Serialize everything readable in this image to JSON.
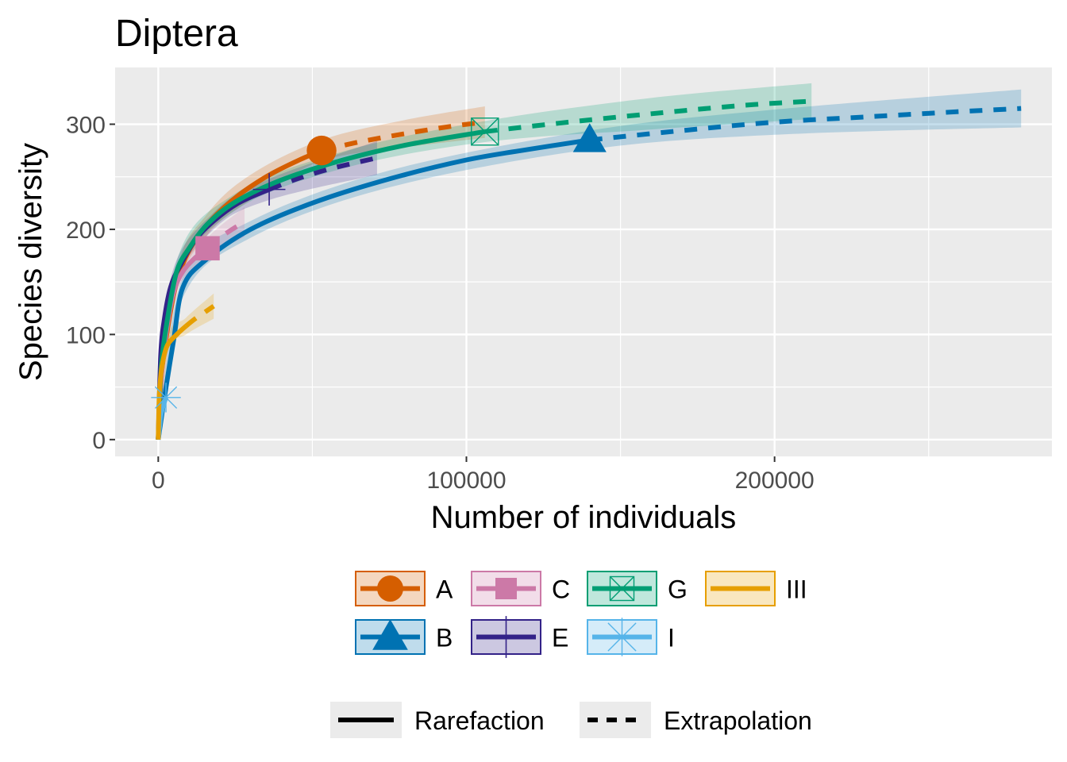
{
  "chart_data": {
    "type": "line",
    "title": "Diptera",
    "xlabel": "Number of individuals",
    "ylabel": "Species diversity",
    "xlim": [
      -14000,
      290000
    ],
    "ylim": [
      -16,
      354
    ],
    "x_ticks": [
      0,
      100000,
      200000
    ],
    "x_tick_labels": [
      "0",
      "100000",
      "200000"
    ],
    "y_ticks": [
      0,
      100,
      200,
      300
    ],
    "y_tick_labels": [
      "0",
      "100",
      "200",
      "300"
    ],
    "grid": true,
    "legend_position": "bottom",
    "linetype_legend": [
      {
        "label": "Rarefaction",
        "dash": "solid"
      },
      {
        "label": "Extrapolation",
        "dash": "dashed"
      }
    ],
    "series": [
      {
        "name": "A",
        "color": "#D55E00",
        "marker": "circle",
        "observed": [
          53000,
          275
        ],
        "rarefaction": [
          [
            0,
            0
          ],
          [
            1000,
            60
          ],
          [
            3000,
            105
          ],
          [
            6000,
            150
          ],
          [
            10000,
            180
          ],
          [
            16000,
            205
          ],
          [
            25000,
            230
          ],
          [
            35000,
            250
          ],
          [
            45000,
            265
          ],
          [
            53000,
            275
          ]
        ],
        "extrapolation": [
          [
            53000,
            275
          ],
          [
            65000,
            283
          ],
          [
            80000,
            291
          ],
          [
            95000,
            298
          ],
          [
            106000,
            302
          ]
        ],
        "band": [
          [
            0,
            0,
            0
          ],
          [
            6000,
            140,
            160
          ],
          [
            16000,
            195,
            215
          ],
          [
            30000,
            228,
            252
          ],
          [
            53000,
            265,
            285
          ],
          [
            80000,
            278,
            304
          ],
          [
            106000,
            287,
            317
          ]
        ]
      },
      {
        "name": "B",
        "color": "#0072B2",
        "marker": "triangle",
        "observed": [
          140000,
          285
        ],
        "rarefaction": [
          [
            0,
            0
          ],
          [
            2000,
            40
          ],
          [
            5000,
            95
          ],
          [
            8000,
            145
          ],
          [
            15000,
            170
          ],
          [
            30000,
            200
          ],
          [
            50000,
            225
          ],
          [
            75000,
            248
          ],
          [
            100000,
            266
          ],
          [
            120000,
            276
          ],
          [
            140000,
            285
          ]
        ],
        "extrapolation": [
          [
            140000,
            285
          ],
          [
            170000,
            294
          ],
          [
            200000,
            302
          ],
          [
            230000,
            307
          ],
          [
            260000,
            312
          ],
          [
            280000,
            315
          ]
        ],
        "band": [
          [
            0,
            0,
            0
          ],
          [
            8000,
            135,
            155
          ],
          [
            30000,
            192,
            208
          ],
          [
            75000,
            240,
            256
          ],
          [
            140000,
            276,
            294
          ],
          [
            200000,
            290,
            314
          ],
          [
            280000,
            297,
            333
          ]
        ]
      },
      {
        "name": "C",
        "color": "#CC79A7",
        "marker": "square",
        "observed": [
          16000,
          182
        ],
        "rarefaction": [
          [
            0,
            0
          ],
          [
            1000,
            60
          ],
          [
            2500,
            100
          ],
          [
            5000,
            140
          ],
          [
            8000,
            160
          ],
          [
            12000,
            173
          ],
          [
            16000,
            182
          ]
        ],
        "extrapolation": [
          [
            16000,
            182
          ],
          [
            20000,
            192
          ],
          [
            24000,
            200
          ],
          [
            28000,
            207
          ]
        ],
        "band": [
          [
            0,
            0,
            0
          ],
          [
            5000,
            132,
            148
          ],
          [
            16000,
            172,
            192
          ],
          [
            28000,
            193,
            221
          ]
        ]
      },
      {
        "name": "E",
        "color": "#332288",
        "marker": "cross",
        "observed": [
          36000,
          238
        ],
        "rarefaction": [
          [
            0,
            0
          ],
          [
            800,
            80
          ],
          [
            2000,
            115
          ],
          [
            4000,
            145
          ],
          [
            7000,
            165
          ],
          [
            12000,
            190
          ],
          [
            18000,
            208
          ],
          [
            26000,
            225
          ],
          [
            36000,
            238
          ]
        ],
        "extrapolation": [
          [
            36000,
            238
          ],
          [
            45000,
            248
          ],
          [
            55000,
            257
          ],
          [
            65000,
            264
          ],
          [
            71000,
            268
          ]
        ],
        "band": [
          [
            0,
            0,
            0
          ],
          [
            4000,
            137,
            153
          ],
          [
            18000,
            200,
            216
          ],
          [
            36000,
            228,
            248
          ],
          [
            71000,
            252,
            284
          ]
        ]
      },
      {
        "name": "G",
        "color": "#009E73",
        "marker": "boxcross",
        "observed": [
          106000,
          293
        ],
        "rarefaction": [
          [
            0,
            0
          ],
          [
            1000,
            70
          ],
          [
            3000,
            115
          ],
          [
            6000,
            160
          ],
          [
            10000,
            182
          ],
          [
            16000,
            205
          ],
          [
            25000,
            226
          ],
          [
            40000,
            247
          ],
          [
            60000,
            266
          ],
          [
            80000,
            280
          ],
          [
            106000,
            293
          ]
        ],
        "extrapolation": [
          [
            106000,
            293
          ],
          [
            130000,
            301
          ],
          [
            160000,
            310
          ],
          [
            190000,
            318
          ],
          [
            212000,
            322
          ]
        ],
        "band": [
          [
            0,
            0,
            0
          ],
          [
            6000,
            150,
            170
          ],
          [
            25000,
            218,
            234
          ],
          [
            60000,
            258,
            274
          ],
          [
            106000,
            283,
            303
          ],
          [
            160000,
            295,
            325
          ],
          [
            212000,
            305,
            339
          ]
        ]
      },
      {
        "name": "I",
        "color": "#56B4E9",
        "marker": "asterisk",
        "observed": [
          2500,
          40
        ],
        "rarefaction": [
          [
            0,
            0
          ],
          [
            800,
            22
          ],
          [
            1600,
            32
          ],
          [
            2500,
            40
          ]
        ],
        "extrapolation": [],
        "band": [
          [
            0,
            0,
            0
          ],
          [
            2500,
            34,
            46
          ]
        ]
      },
      {
        "name": "III",
        "color": "#E69F00",
        "marker": "none",
        "observed": null,
        "rarefaction": [
          [
            0,
            0
          ],
          [
            300,
            40
          ],
          [
            800,
            60
          ],
          [
            1500,
            75
          ],
          [
            3000,
            90
          ],
          [
            6000,
            100
          ],
          [
            9000,
            108
          ]
        ],
        "extrapolation": [
          [
            9000,
            108
          ],
          [
            12000,
            115
          ],
          [
            15000,
            121
          ],
          [
            18000,
            127
          ]
        ],
        "band": [
          [
            0,
            0,
            0
          ],
          [
            3000,
            84,
            96
          ],
          [
            9000,
            100,
            116
          ],
          [
            18000,
            115,
            139
          ]
        ]
      }
    ]
  }
}
